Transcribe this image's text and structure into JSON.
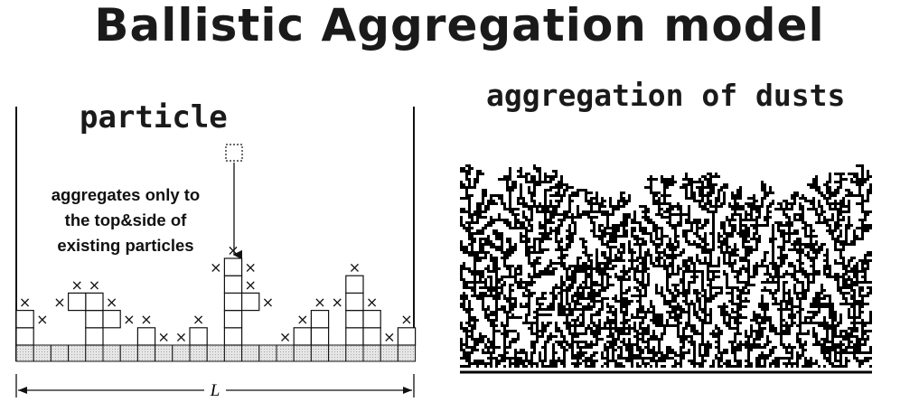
{
  "title": "Ballistic Aggregation model",
  "diagram": {
    "heading": "particle",
    "note_lines": [
      "aggregates only to",
      "the top&side of",
      "existing particles"
    ],
    "length_label": "L",
    "cross_symbol": "×"
  },
  "dust_panel": {
    "heading": "aggregation of dusts"
  }
}
